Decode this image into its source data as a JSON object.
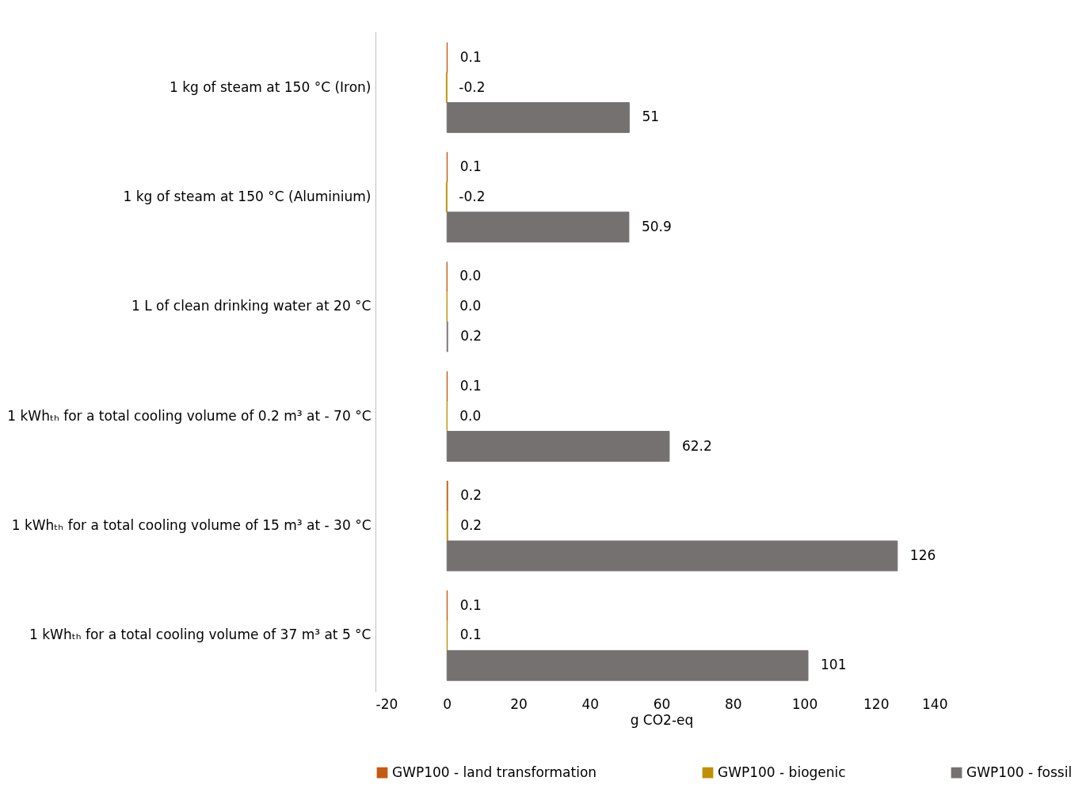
{
  "chart_data": {
    "type": "bar",
    "orientation": "horizontal",
    "xlabel": "g CO2-eq",
    "categories": [
      "1 kg of steam at 150 °C (Iron)",
      "1 kg of steam at 150 °C (Aluminium)",
      "1 L of clean drinking water at 20 °C",
      "1 kWhₜₕ for a total cooling volume of 0.2 m³ at - 70 °C",
      "1 kWhₜₕ for a total cooling volume of 15 m³ at - 30 °C",
      "1 kWhₜₕ for a total cooling volume of 37 m³ at 5 °C"
    ],
    "series": [
      {
        "name": "GWP100 - land transformation",
        "color": "#c55a11",
        "values": [
          0.1,
          0.1,
          0,
          0.1,
          0.2,
          0.1
        ],
        "value_labels": [
          "0.1",
          "0.1",
          "0.0",
          "0.1",
          "0.2",
          "0.1"
        ]
      },
      {
        "name": "GWP100 - biogenic",
        "color": "#bf9000",
        "values": [
          -0.2,
          -0.2,
          0,
          0,
          0.2,
          0.1
        ],
        "value_labels": [
          "-0.2",
          "-0.2",
          "0.0",
          "0.0",
          "0.2",
          "0.1"
        ]
      },
      {
        "name": "GWP100 - fossil",
        "color": "#767171",
        "values": [
          51,
          50.9,
          0.2,
          62.2,
          126,
          101
        ],
        "value_labels": [
          "51",
          "50.9",
          "0.2",
          "62.2",
          "126",
          "101"
        ]
      }
    ],
    "xlim": [
      -20,
      140
    ],
    "xticks": [
      -20,
      0,
      20,
      40,
      60,
      80,
      100,
      120,
      140
    ],
    "grid": false,
    "legend": "bottom"
  }
}
